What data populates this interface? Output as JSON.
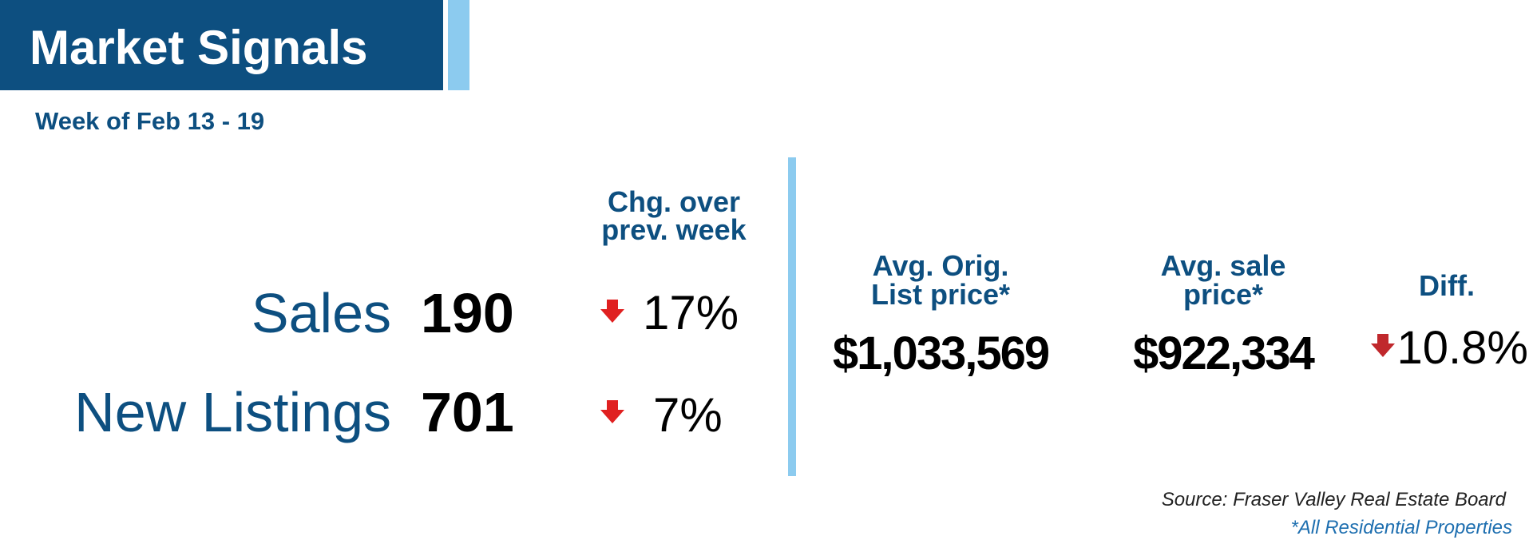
{
  "header": {
    "title": "Market Signals",
    "subtitle": "Week of Feb 13 - 19"
  },
  "left": {
    "change_header": [
      "Chg. over",
      "prev. week"
    ],
    "rows": [
      {
        "label": "Sales",
        "value": "190",
        "change": "17%"
      },
      {
        "label": "New Listings",
        "value": "701",
        "change": "7%"
      }
    ]
  },
  "right": {
    "columns": [
      {
        "header": [
          "Avg. Orig.",
          "List price*"
        ],
        "value": "$1,033,569"
      },
      {
        "header": [
          "Avg. sale",
          "price*"
        ],
        "value": "$922,334"
      },
      {
        "header": [
          "Diff."
        ],
        "value": "10.8%"
      }
    ]
  },
  "footer": {
    "source": "Source: Fraser Valley Real Estate Board",
    "note": "*All Residential Properties"
  }
}
